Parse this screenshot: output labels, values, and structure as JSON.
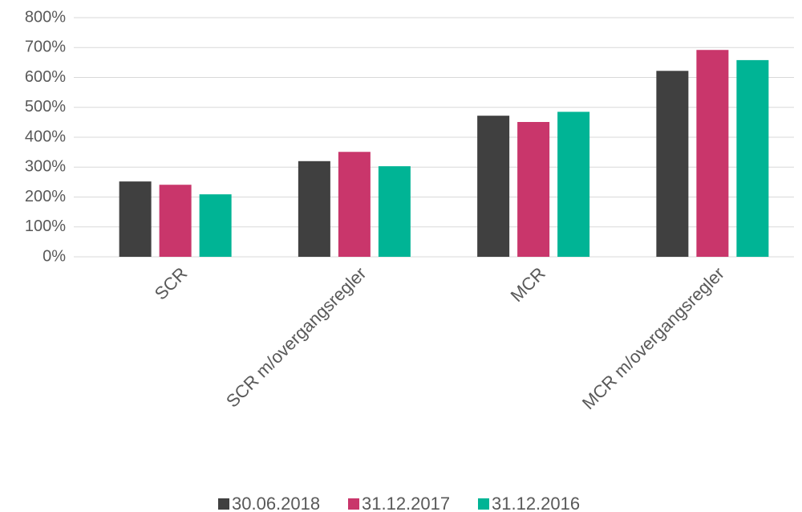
{
  "chart_data": {
    "type": "bar",
    "categories": [
      "SCR",
      "SCR m/overgangsregler",
      "MCR",
      "MCR m/overgangsregler"
    ],
    "series": [
      {
        "name": "30.06.2018",
        "color": "#404040",
        "values": [
          252,
          320,
          472,
          622
        ]
      },
      {
        "name": "31.12.2017",
        "color": "#c9366b",
        "values": [
          241,
          351,
          451,
          692
        ]
      },
      {
        "name": "31.12.2016",
        "color": "#00b495",
        "values": [
          209,
          303,
          485,
          658
        ]
      }
    ],
    "ylim": [
      0,
      800
    ],
    "yticks": [
      {
        "value": 0,
        "label": "0%"
      },
      {
        "value": 100,
        "label": "100%"
      },
      {
        "value": 200,
        "label": "200%"
      },
      {
        "value": 300,
        "label": "300%"
      },
      {
        "value": 400,
        "label": "400%"
      },
      {
        "value": 500,
        "label": "500%"
      },
      {
        "value": 600,
        "label": "600%"
      },
      {
        "value": 700,
        "label": "700%"
      },
      {
        "value": 800,
        "label": "800%"
      }
    ],
    "grid": true,
    "legend": "bottom"
  }
}
